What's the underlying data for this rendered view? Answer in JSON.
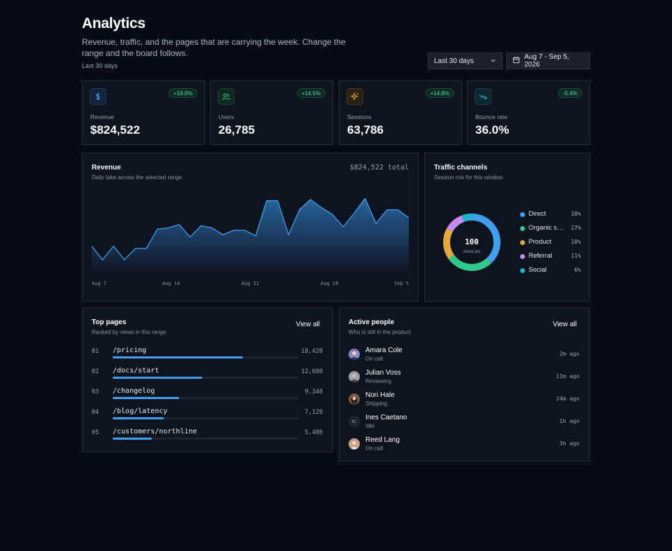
{
  "header": {
    "title": "Analytics",
    "subtitle": "Revenue, traffic, and the pages that are carrying the week. Change the range and the board follows.",
    "range_note": "Last 30 days",
    "range_select": "Last 30 days",
    "date_range": "Aug 7 - Sep 5, 2026"
  },
  "kpis": [
    {
      "icon": "dollar-icon",
      "label": "Revenue",
      "value": "$824,522",
      "change": "+19.0%",
      "color": "#3ea0ef"
    },
    {
      "icon": "users-icon",
      "label": "Users",
      "value": "26,785",
      "change": "+14.5%",
      "color": "#2fc98a"
    },
    {
      "icon": "sparkle-icon",
      "label": "Sessions",
      "value": "63,786",
      "change": "+14.8%",
      "color": "#e0a93a"
    },
    {
      "icon": "trend-down-icon",
      "label": "Bounce rate",
      "value": "36.0%",
      "change": "-5.4%",
      "color": "#1fb5c9"
    }
  ],
  "revenue": {
    "title": "Revenue",
    "subtitle": "Daily take across the selected range",
    "total": "$824,522 total",
    "x_labels": [
      "Aug 7",
      "Aug 14",
      "Aug 21",
      "Aug 28",
      "Sep 5"
    ]
  },
  "chart_data": [
    {
      "type": "area",
      "title": "Revenue",
      "series": [
        {
          "values": [
            23,
            11,
            23,
            11,
            21,
            21,
            38,
            39,
            42,
            31,
            41,
            39,
            33,
            37,
            37,
            32,
            63,
            63,
            33,
            55,
            64,
            57,
            51,
            40,
            52,
            65,
            43,
            55,
            55,
            48
          ]
        }
      ],
      "x_labels": [
        "Aug 7",
        "Aug 14",
        "Aug 21",
        "Aug 28",
        "Sep 5"
      ],
      "ylim": [
        0,
        80
      ],
      "grid": false,
      "color": "#3ea0ef"
    },
    {
      "type": "pie",
      "title": "Traffic channels",
      "center_value": "100",
      "center_label": "share pts",
      "slices": [
        {
          "name": "Direct",
          "value": 38,
          "label": "38%",
          "color": "#3ea0ef"
        },
        {
          "name": "Organic search",
          "value": 27,
          "label": "27%",
          "color": "#2fc98a"
        },
        {
          "name": "Product",
          "value": 18,
          "label": "18%",
          "color": "#e0a93a"
        },
        {
          "name": "Referral",
          "value": 11,
          "label": "11%",
          "color": "#c889f0"
        },
        {
          "name": "Social",
          "value": 6,
          "label": "6%",
          "color": "#1fb5c9"
        }
      ]
    }
  ],
  "traffic": {
    "title": "Traffic channels",
    "subtitle": "Session mix for this window"
  },
  "top_pages": {
    "title": "Top pages",
    "subtitle": "Ranked by views in this range",
    "view_all": "View all",
    "rows": [
      {
        "rank": "01",
        "path": "/pricing",
        "views": "18,420",
        "share": 1.0
      },
      {
        "rank": "02",
        "path": "/docs/start",
        "views": "12,680",
        "share": 0.69
      },
      {
        "rank": "03",
        "path": "/changelog",
        "views": "9,340",
        "share": 0.51
      },
      {
        "rank": "04",
        "path": "/blog/latency",
        "views": "7,120",
        "share": 0.39
      },
      {
        "rank": "05",
        "path": "/customers/northline",
        "views": "5,480",
        "share": 0.3
      }
    ]
  },
  "active_people": {
    "title": "Active people",
    "subtitle": "Who is still in the product",
    "view_all": "View all",
    "rows": [
      {
        "name": "Amara Cole",
        "status": "On call",
        "ago": "2m ago",
        "avatar": "photo",
        "tone": "#8a86c9"
      },
      {
        "name": "Julian Voss",
        "status": "Reviewing",
        "ago": "11m ago",
        "avatar": "photo",
        "tone": "#9aa1ad"
      },
      {
        "name": "Nori Hale",
        "status": "Shipping",
        "ago": "24m ago",
        "avatar": "photo",
        "tone": "#7b5a48"
      },
      {
        "name": "Ines Caetano",
        "status": "Idle",
        "ago": "1h ago",
        "avatar": "IC",
        "tone": "#1b202c"
      },
      {
        "name": "Reed Lang",
        "status": "On call",
        "ago": "3h ago",
        "avatar": "photo",
        "tone": "#c9a184"
      }
    ]
  }
}
